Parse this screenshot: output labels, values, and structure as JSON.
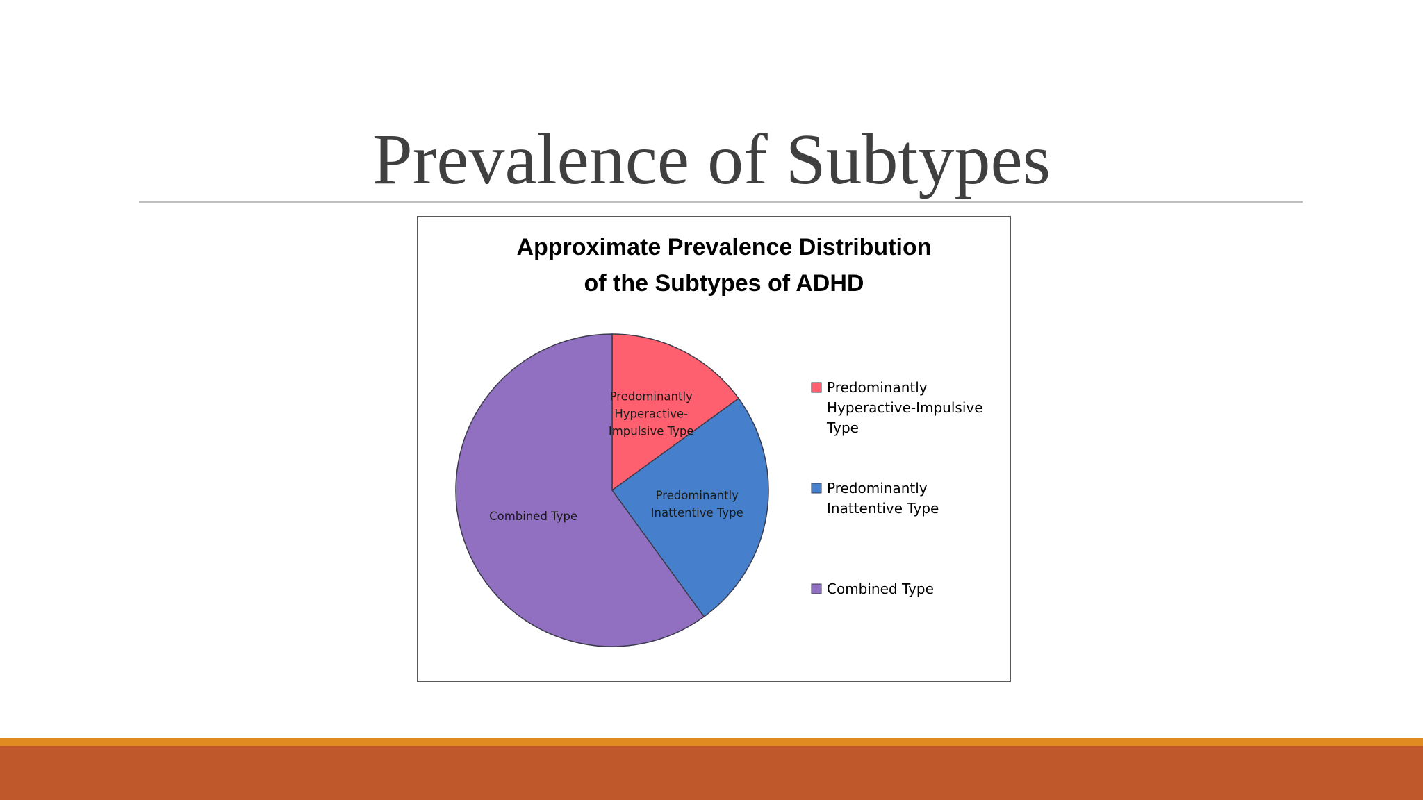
{
  "slide": {
    "title": "Prevalence of Subtypes"
  },
  "colors": {
    "title_text": "#404040",
    "footer_orange": "#e08a22",
    "footer_rust": "#bf582b"
  },
  "chart_data": {
    "type": "pie",
    "title": "Approximate Prevalence Distribution of the Subtypes of ADHD",
    "title_lines": [
      "Approximate Prevalence Distribution",
      "of the Subtypes of ADHD"
    ],
    "start_angle_deg": 0,
    "direction": "clockwise",
    "legend_position": "right",
    "slices": [
      {
        "name": "Predominantly Hyperactive-Impulsive Type",
        "value": 15,
        "color": "#ff6070",
        "label_lines": [
          "Predominantly",
          "Hyperactive-",
          "Impulsive Type"
        ],
        "legend_lines": [
          "Predominantly",
          "Hyperactive-Impulsive",
          "Type"
        ]
      },
      {
        "name": "Predominantly Inattentive Type",
        "value": 25,
        "color": "#4680cc",
        "label_lines": [
          "Predominantly",
          "Inattentive Type"
        ],
        "legend_lines": [
          "Predominantly",
          "Inattentive Type"
        ]
      },
      {
        "name": "Combined Type",
        "value": 60,
        "color": "#9170c2",
        "label_lines": [
          "Combined Type"
        ],
        "legend_lines": [
          "Combined Type"
        ]
      }
    ]
  }
}
